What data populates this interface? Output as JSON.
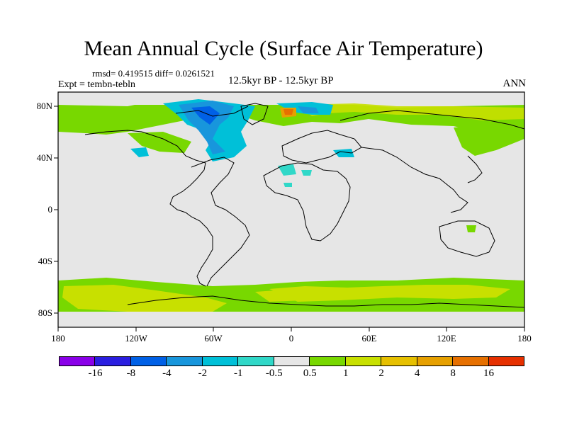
{
  "title": "Mean Annual Cycle (Surface Air Temperature)",
  "stats_text": "rmsd= 0.419515 diff= 0.0261521",
  "expt_text": "Expt = tembn-tebln",
  "period_text": "12.5kyr BP - 12.5kyr BP",
  "season_text": "ANN",
  "lat_labels": [
    "80N",
    "40N",
    "0",
    "40S",
    "80S"
  ],
  "lon_labels": [
    "180",
    "120W",
    "60W",
    "0",
    "60E",
    "120E",
    "180"
  ],
  "colorbar": {
    "colors": [
      "#8a00e8",
      "#2a1ee0",
      "#0060e6",
      "#1896dc",
      "#00c0d8",
      "#30d8c8",
      "#e6e6e6",
      "#78d800",
      "#c8e000",
      "#e6c000",
      "#e6a000",
      "#e67000",
      "#e63000"
    ],
    "labels": [
      "-16",
      "-8",
      "-4",
      "-2",
      "-1",
      "-0.5",
      "0.5",
      "1",
      "2",
      "4",
      "8",
      "16"
    ]
  },
  "background_color": "#e6e6e6"
}
